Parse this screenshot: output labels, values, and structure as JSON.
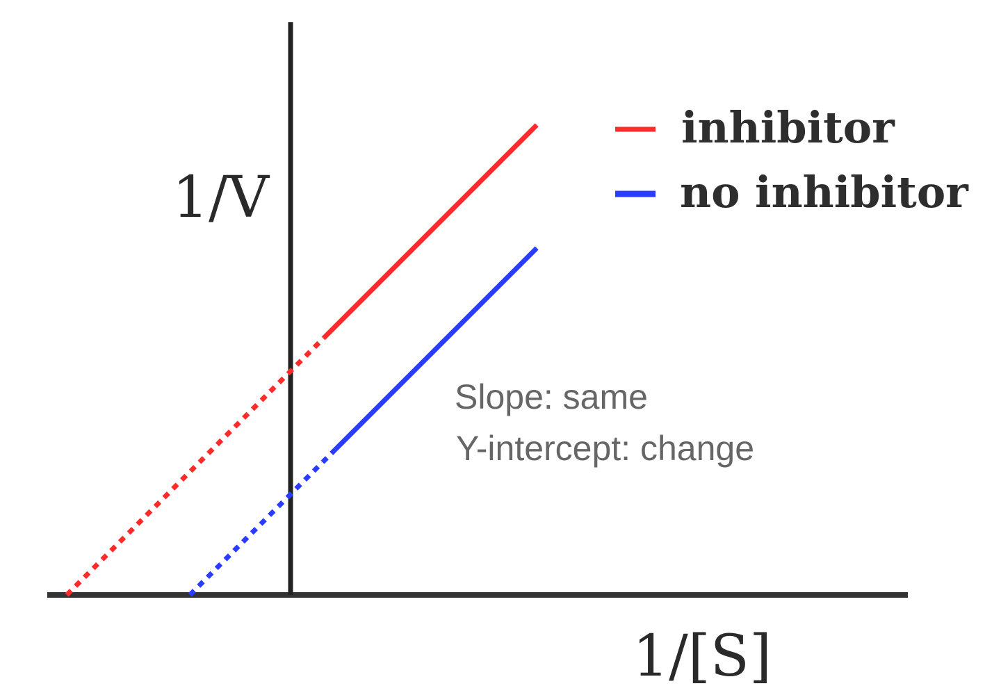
{
  "chart_data": {
    "type": "line",
    "title": "",
    "xlabel": "1/[S]",
    "ylabel": "1/V",
    "legend_position": "top-right",
    "grid": false,
    "series": [
      {
        "name": "inhibitor",
        "color": "#ff2a2a",
        "slope": 1.0,
        "y_intercept": 1.0,
        "x_intercept": -1.0,
        "solid_x_range": [
          0.15,
          1.1
        ],
        "extrapolated_x_range": [
          -1.0,
          0.15
        ]
      },
      {
        "name": "no inhibitor",
        "color": "#2a3cff",
        "slope": 1.0,
        "y_intercept": 0.45,
        "x_intercept": -0.45,
        "solid_x_range": [
          0.2,
          1.1
        ],
        "extrapolated_x_range": [
          -0.45,
          0.2
        ]
      }
    ],
    "annotations": [
      "Slope: same",
      "Y-intercept: change"
    ]
  }
}
